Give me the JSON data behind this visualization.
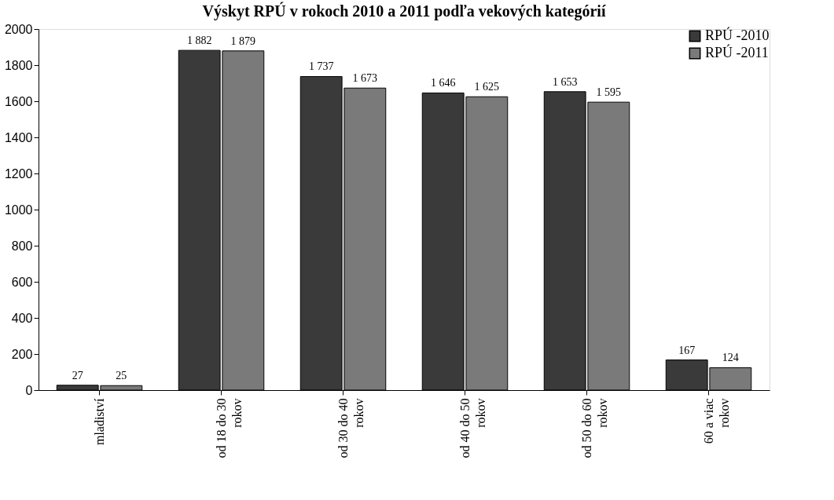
{
  "chart_data": {
    "type": "bar",
    "title": "Výskyt RPÚ v rokoch 2010 a 2011 podľa vekových kategórií",
    "categories": [
      "mladiství",
      "od 18 do 30 rokov",
      "od 30 do 40 rokov",
      "od 40 do 50 rokov",
      "od 50 do 60 rokov",
      "60 a viac rokov"
    ],
    "series": [
      {
        "name": "RPÚ -2010",
        "color": "#3a3a3a",
        "values": [
          27,
          1882,
          1737,
          1646,
          1653,
          167
        ],
        "value_labels": [
          "27",
          "1 882",
          "1 737",
          "1 646",
          "1 653",
          "167"
        ]
      },
      {
        "name": "RPÚ -2011",
        "color": "#7a7a7a",
        "values": [
          25,
          1879,
          1673,
          1625,
          1595,
          124
        ],
        "value_labels": [
          "25",
          "1 879",
          "1 673",
          "1 625",
          "1 595",
          "124"
        ]
      }
    ],
    "ylim": [
      0,
      2000
    ],
    "yticks": [
      0,
      200,
      400,
      600,
      800,
      1000,
      1200,
      1400,
      1600,
      1800,
      2000
    ],
    "grid": false,
    "legend": "top right"
  }
}
